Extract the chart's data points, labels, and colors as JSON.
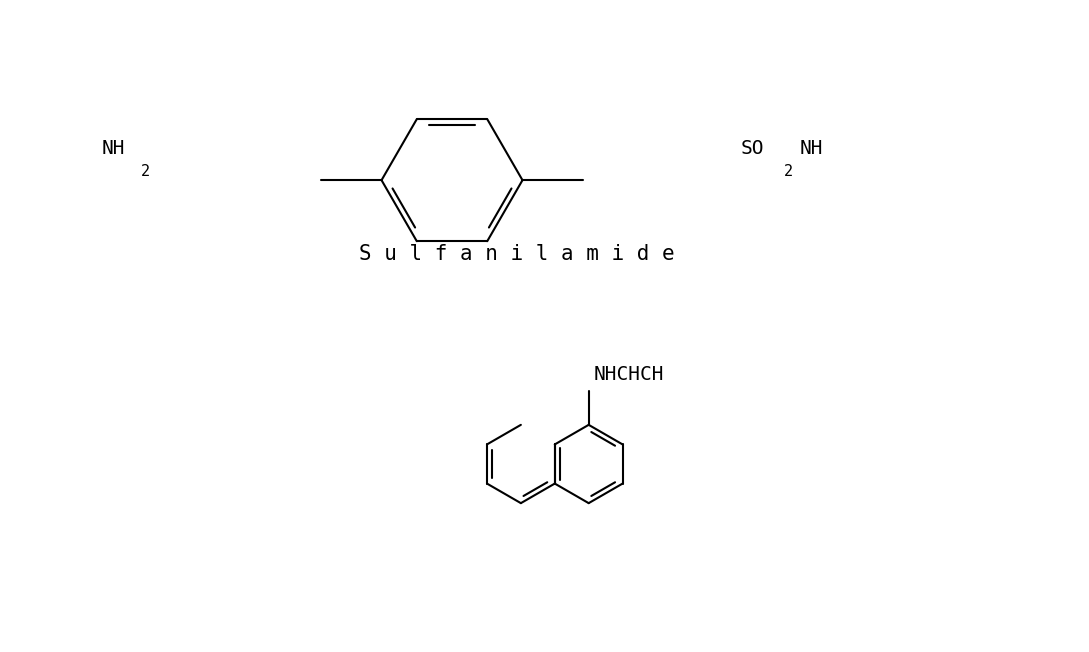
{
  "bg_color": "#ffffff",
  "line_color": "#000000",
  "line_width": 1.5,
  "sulfanilamide_label": "S u l f a n i l a m i d e",
  "sulfanilamide_label_fontsize": 15,
  "sulfanilamide_label_font": "monospace",
  "nh2_text": "NH",
  "nh2_subscript": "2",
  "so2nh_text1": "SO",
  "so2nh_subscript": "2",
  "so2nh_text2": "NH",
  "nhchch_text": "NHCHCH",
  "text_fontsize": 14,
  "text_font": "monospace",
  "nhchch_color": "#000000"
}
